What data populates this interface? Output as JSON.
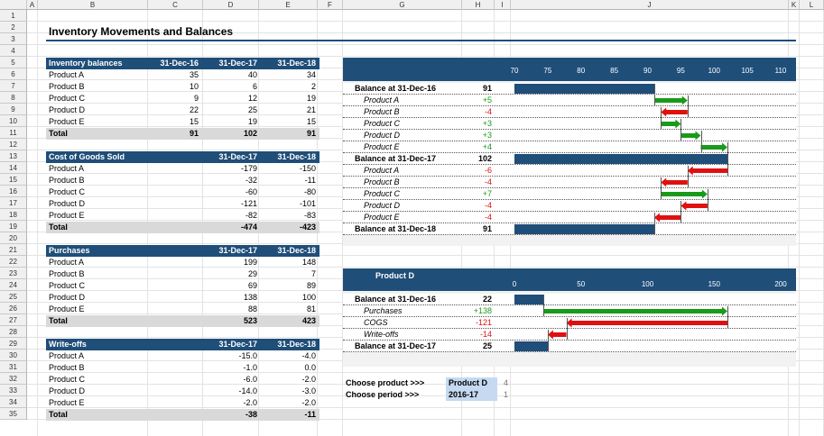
{
  "columns": [
    "A",
    "B",
    "C",
    "D",
    "E",
    "F",
    "G",
    "H",
    "I",
    "J",
    "K",
    "L"
  ],
  "rows": [
    "1",
    "2",
    "3",
    "4",
    "5",
    "6",
    "7",
    "8",
    "9",
    "10",
    "11",
    "12",
    "13",
    "14",
    "15",
    "16",
    "17",
    "18",
    "19",
    "20",
    "21",
    "22",
    "23",
    "24",
    "25",
    "26",
    "27",
    "28",
    "29",
    "30",
    "31",
    "32",
    "33",
    "34",
    "35"
  ],
  "title": "Inventory Movements and Balances",
  "tables": [
    {
      "header": [
        "Inventory balances",
        "31-Dec-16",
        "31-Dec-17",
        "31-Dec-18"
      ],
      "rows": [
        [
          "Product A",
          "35",
          "40",
          "34"
        ],
        [
          "Product B",
          "10",
          "6",
          "2"
        ],
        [
          "Product C",
          "9",
          "12",
          "19"
        ],
        [
          "Product D",
          "22",
          "25",
          "21"
        ],
        [
          "Product E",
          "15",
          "19",
          "15"
        ]
      ],
      "total": [
        "Total",
        "91",
        "102",
        "91"
      ]
    },
    {
      "header": [
        "Cost of Goods Sold",
        "",
        "31-Dec-17",
        "31-Dec-18"
      ],
      "rows": [
        [
          "Product A",
          "",
          "-179",
          "-150"
        ],
        [
          "Product B",
          "",
          "-32",
          "-11"
        ],
        [
          "Product C",
          "",
          "-60",
          "-80"
        ],
        [
          "Product D",
          "",
          "-121",
          "-101"
        ],
        [
          "Product E",
          "",
          "-82",
          "-83"
        ]
      ],
      "total": [
        "Total",
        "",
        "-474",
        "-423"
      ]
    },
    {
      "header": [
        "Purchases",
        "",
        "31-Dec-17",
        "31-Dec-18"
      ],
      "rows": [
        [
          "Product A",
          "",
          "199",
          "148"
        ],
        [
          "Product B",
          "",
          "29",
          "7"
        ],
        [
          "Product C",
          "",
          "69",
          "89"
        ],
        [
          "Product D",
          "",
          "138",
          "100"
        ],
        [
          "Product E",
          "",
          "88",
          "81"
        ]
      ],
      "total": [
        "Total",
        "",
        "523",
        "423"
      ]
    },
    {
      "header": [
        "Write-offs",
        "",
        "31-Dec-17",
        "31-Dec-18"
      ],
      "rows": [
        [
          "Product A",
          "",
          "-15.0",
          "-4.0"
        ],
        [
          "Product B",
          "",
          "-1.0",
          "0.0"
        ],
        [
          "Product C",
          "",
          "-6.0",
          "-2.0"
        ],
        [
          "Product D",
          "",
          "-14.0",
          "-3.0"
        ],
        [
          "Product E",
          "",
          "-2.0",
          "-2.0"
        ]
      ],
      "total": [
        "Total",
        "",
        "-38",
        "-11"
      ]
    }
  ],
  "colors": {
    "header": "#1f4e79",
    "total": "#d9d9d9",
    "up": "#1a9a1a",
    "down": "#e01010",
    "selection": "#c5d9f1"
  },
  "chart_data": [
    {
      "type": "bar",
      "orientation": "horizontal-waterfall",
      "ticks": [
        "70",
        "75",
        "80",
        "85",
        "90",
        "95",
        "100",
        "105",
        "110"
      ],
      "xlim": [
        70,
        110
      ],
      "rows": [
        {
          "label": "Balance at 31-Dec-16",
          "value": "91",
          "kind": "balance",
          "balance": 91
        },
        {
          "label": "Product A",
          "value": "+5",
          "kind": "up",
          "from": 91,
          "to": 96
        },
        {
          "label": "Product B",
          "value": "-4",
          "kind": "down",
          "from": 96,
          "to": 92
        },
        {
          "label": "Product C",
          "value": "+3",
          "kind": "up",
          "from": 92,
          "to": 95
        },
        {
          "label": "Product D",
          "value": "+3",
          "kind": "up",
          "from": 95,
          "to": 98
        },
        {
          "label": "Product E",
          "value": "+4",
          "kind": "up",
          "from": 98,
          "to": 102
        },
        {
          "label": "Balance at 31-Dec-17",
          "value": "102",
          "kind": "balance",
          "balance": 102
        },
        {
          "label": "Product A",
          "value": "-6",
          "kind": "down",
          "from": 102,
          "to": 96
        },
        {
          "label": "Product B",
          "value": "-4",
          "kind": "down",
          "from": 96,
          "to": 92
        },
        {
          "label": "Product C",
          "value": "+7",
          "kind": "up",
          "from": 92,
          "to": 99
        },
        {
          "label": "Product D",
          "value": "-4",
          "kind": "down",
          "from": 99,
          "to": 95
        },
        {
          "label": "Product E",
          "value": "-4",
          "kind": "down",
          "from": 95,
          "to": 91
        },
        {
          "label": "Balance at 31-Dec-18",
          "value": "91",
          "kind": "balance",
          "balance": 91
        }
      ]
    },
    {
      "type": "bar",
      "orientation": "horizontal-waterfall",
      "title": "Product D",
      "ticks": [
        "0",
        "50",
        "100",
        "150",
        "200"
      ],
      "xlim": [
        0,
        200
      ],
      "rows": [
        {
          "label": "Balance at 31-Dec-16",
          "value": "22",
          "kind": "balance",
          "balance": 22
        },
        {
          "label": "Purchases",
          "value": "+138",
          "kind": "up",
          "from": 22,
          "to": 160
        },
        {
          "label": "COGS",
          "value": "-121",
          "kind": "down",
          "from": 160,
          "to": 39
        },
        {
          "label": "Write-offs",
          "value": "-14",
          "kind": "down",
          "from": 39,
          "to": 25
        },
        {
          "label": "Balance at 31-Dec-17",
          "value": "25",
          "kind": "balance",
          "balance": 25
        }
      ]
    }
  ],
  "controls": {
    "product_label": "Choose product >>>",
    "product_value": "Product D",
    "product_index": "4",
    "period_label": "Choose period >>>",
    "period_value": "2016-17",
    "period_index": "1"
  }
}
